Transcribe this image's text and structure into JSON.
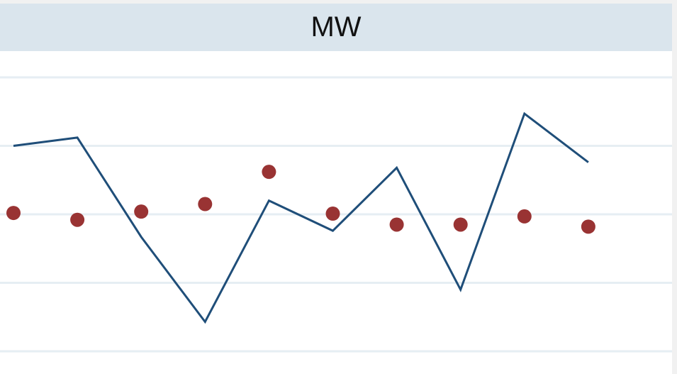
{
  "panel": {
    "title": "MW"
  },
  "chart_data": {
    "type": "line",
    "title": "MW",
    "xlabel": "",
    "ylabel": "",
    "x": [
      1,
      2,
      3,
      4,
      5,
      6,
      7,
      8,
      9,
      10
    ],
    "ylim": [
      0,
      4
    ],
    "grid": true,
    "legend": "none",
    "series": [
      {
        "kind": "line",
        "color": "#1f4e79",
        "values": [
          3.0,
          3.12,
          1.67,
          0.43,
          2.2,
          1.76,
          2.68,
          0.9,
          3.47,
          2.76
        ]
      },
      {
        "kind": "scatter",
        "color": "#993333",
        "values": [
          2.02,
          1.92,
          2.04,
          2.15,
          2.62,
          2.01,
          1.85,
          1.85,
          1.97,
          1.82
        ]
      }
    ]
  },
  "colors": {
    "grid": "#e6eef3",
    "header": "#dae5ed",
    "line": "#1f4e79",
    "dots": "#993333"
  }
}
